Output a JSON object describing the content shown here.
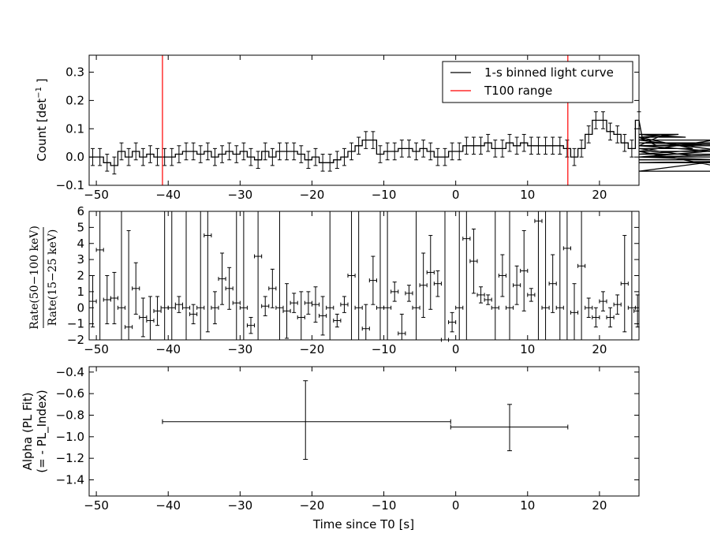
{
  "colors": {
    "axis": "#000000",
    "data": "#000000",
    "t100": "#ff0000",
    "background": "#ffffff"
  },
  "x_axis": {
    "label": "Time since T0 [s]",
    "xlim": [
      -51,
      25.5
    ],
    "ticks": [
      -50,
      -40,
      -30,
      -20,
      -10,
      0,
      10,
      20
    ],
    "tick_labels": [
      "−50",
      "−40",
      "−30",
      "−20",
      "−10",
      "0",
      "10",
      "20"
    ]
  },
  "chart_data": [
    {
      "type": "line",
      "panel": "light-curve",
      "ylabel_main": "Count [det",
      "ylabel_sup": "−1",
      "ylabel_tail": " ]",
      "ylim": [
        -0.1,
        0.36
      ],
      "yticks": [
        -0.1,
        0.0,
        0.1,
        0.2,
        0.3
      ],
      "ytick_labels": [
        "−0.1",
        "0.0",
        "0.1",
        "0.2",
        "0.3"
      ],
      "legend": {
        "placement": "top-right",
        "entries": [
          {
            "label": "1-s binned light curve",
            "color": "#000000"
          },
          {
            "label": "T100 range",
            "color": "#ff0000"
          }
        ]
      },
      "t100_range": [
        -40.8,
        15.6
      ],
      "bin_width": 1,
      "x_start": -51,
      "values": [
        0.0,
        0.0,
        -0.02,
        -0.03,
        0.02,
        0.0,
        0.02,
        0.0,
        0.01,
        0.0,
        0.0,
        0.0,
        0.01,
        0.02,
        0.02,
        0.01,
        0.02,
        0.0,
        0.01,
        0.02,
        0.01,
        0.02,
        0.0,
        -0.01,
        0.02,
        0.0,
        0.02,
        0.02,
        0.02,
        0.01,
        -0.01,
        0.0,
        -0.02,
        -0.02,
        -0.01,
        0.0,
        0.02,
        0.04,
        0.06,
        0.06,
        0.01,
        0.02,
        0.02,
        0.03,
        0.03,
        0.02,
        0.03,
        0.02,
        0.0,
        0.0,
        0.02,
        0.02,
        0.04,
        0.04,
        0.04,
        0.05,
        0.03,
        0.03,
        0.05,
        0.04,
        0.05,
        0.04,
        0.04,
        0.04,
        0.04,
        0.04,
        0.03,
        0.0,
        0.03,
        0.08,
        0.13,
        0.13,
        0.09,
        0.08,
        0.05,
        0.03,
        0.13,
        0.06,
        0.07,
        0.04,
        0.08,
        0.07,
        0.08,
        0.07,
        0.03,
        0.0,
        0.02,
        0.06,
        0.06,
        0.02,
        0.02,
        -0.05,
        0.0,
        0.01,
        0.04,
        0.04,
        0.05,
        0.04,
        0.0,
        -0.02,
        -0.01
      ],
      "error": 0.03
    },
    {
      "type": "scatter",
      "panel": "hardness-ratio",
      "ylabel_num": "Rate(50−100 keV)",
      "ylabel_den": "Rate(15−25 keV)",
      "ylim": [
        -2,
        6
      ],
      "yticks": [
        -2,
        -1,
        0,
        1,
        2,
        3,
        4,
        5,
        6
      ],
      "ytick_labels": [
        "−2",
        "−1",
        "0",
        "1",
        "2",
        "3",
        "4",
        "5",
        "6"
      ],
      "points": [
        {
          "x": -50.5,
          "y": 0.4,
          "e": 1.6
        },
        {
          "x": -49.5,
          "y": 3.6,
          "e": 6
        },
        {
          "x": -48.5,
          "y": 0.5,
          "e": 1.5
        },
        {
          "x": -47.5,
          "y": 0.6,
          "e": 1.6
        },
        {
          "x": -46.5,
          "y": 0,
          "e": 8
        },
        {
          "x": -45.5,
          "y": -1.2,
          "e": 6
        },
        {
          "x": -44.5,
          "y": 1.2,
          "e": 1.6
        },
        {
          "x": -43.5,
          "y": -0.6,
          "e": 1.2
        },
        {
          "x": -42.5,
          "y": -0.8,
          "e": 1.5
        },
        {
          "x": -41.5,
          "y": -0.2,
          "e": 0.9
        },
        {
          "x": -40.5,
          "y": 0,
          "e": 8
        },
        {
          "x": -39.5,
          "y": 0,
          "e": 8
        },
        {
          "x": -38.5,
          "y": 0.2,
          "e": 0.5
        },
        {
          "x": -37.5,
          "y": 0,
          "e": 8
        },
        {
          "x": -36.5,
          "y": -0.4,
          "e": 0.6
        },
        {
          "x": -35.5,
          "y": 0,
          "e": 8
        },
        {
          "x": -34.5,
          "y": 4.5,
          "e": 6
        },
        {
          "x": -33.5,
          "y": 0,
          "e": 1
        },
        {
          "x": -32.5,
          "y": 1.8,
          "e": 1.6
        },
        {
          "x": -31.5,
          "y": 1.2,
          "e": 1.3
        },
        {
          "x": -30.5,
          "y": 0.3,
          "e": 8
        },
        {
          "x": -29.5,
          "y": 0,
          "e": 8
        },
        {
          "x": -28.5,
          "y": -1.1,
          "e": 0.5
        },
        {
          "x": -27.5,
          "y": 3.2,
          "e": 6
        },
        {
          "x": -26.5,
          "y": 0.1,
          "e": 0.6
        },
        {
          "x": -25.5,
          "y": 1.2,
          "e": 1.2
        },
        {
          "x": -24.5,
          "y": 0,
          "e": 8
        },
        {
          "x": -23.5,
          "y": -0.2,
          "e": 1.7
        },
        {
          "x": -22.5,
          "y": 0.3,
          "e": 0.6
        },
        {
          "x": -21.5,
          "y": -0.6,
          "e": 1.6
        },
        {
          "x": -20.5,
          "y": 0.3,
          "e": 0.7
        },
        {
          "x": -19.5,
          "y": 0.2,
          "e": 1.1
        },
        {
          "x": -18.5,
          "y": -0.5,
          "e": 1.2
        },
        {
          "x": -17.5,
          "y": 0,
          "e": 8
        },
        {
          "x": -16.5,
          "y": -0.8,
          "e": 0.4
        },
        {
          "x": -15.5,
          "y": 0.2,
          "e": 0.5
        },
        {
          "x": -14.5,
          "y": 2.0,
          "e": 8
        },
        {
          "x": -13.5,
          "y": 0,
          "e": 8
        },
        {
          "x": -12.5,
          "y": -1.3,
          "e": 1.5
        },
        {
          "x": -11.5,
          "y": 1.7,
          "e": 1.5
        },
        {
          "x": -10.5,
          "y": 0,
          "e": 8
        },
        {
          "x": -9.5,
          "y": 0,
          "e": 8
        },
        {
          "x": -8.5,
          "y": 1.0,
          "e": 0.6
        },
        {
          "x": -7.5,
          "y": -1.6,
          "e": 1.2
        },
        {
          "x": -6.5,
          "y": 0.9,
          "e": 0.5
        },
        {
          "x": -5.5,
          "y": 0,
          "e": 8
        },
        {
          "x": -4.5,
          "y": 1.4,
          "e": 2.0
        },
        {
          "x": -3.5,
          "y": 2.2,
          "e": 2.3
        },
        {
          "x": -2.5,
          "y": 1.5,
          "e": 0.8
        },
        {
          "x": -1.5,
          "y": -2.0,
          "e": 8
        },
        {
          "x": -0.5,
          "y": -0.9,
          "e": 0.6
        },
        {
          "x": 0.5,
          "y": 0,
          "e": 8
        },
        {
          "x": 1.5,
          "y": 4.3,
          "e": 8
        },
        {
          "x": 2.5,
          "y": 2.9,
          "e": 2.0
        },
        {
          "x": 3.5,
          "y": 0.8,
          "e": 0.5
        },
        {
          "x": 4.5,
          "y": 0.5,
          "e": 0.3
        },
        {
          "x": 5.5,
          "y": 0,
          "e": 8
        },
        {
          "x": 6.5,
          "y": 2.0,
          "e": 1.3
        },
        {
          "x": 7.5,
          "y": 0,
          "e": 8
        },
        {
          "x": 8.5,
          "y": 1.4,
          "e": 1.2
        },
        {
          "x": 9.5,
          "y": 2.3,
          "e": 2.5
        },
        {
          "x": 10.5,
          "y": 0.8,
          "e": 0.4
        },
        {
          "x": 11.5,
          "y": 5.4,
          "e": 8
        },
        {
          "x": 12.5,
          "y": 0,
          "e": 8
        },
        {
          "x": 13.5,
          "y": 1.5,
          "e": 1.8
        },
        {
          "x": 14.5,
          "y": 0,
          "e": 8
        },
        {
          "x": 15.5,
          "y": 3.7,
          "e": 8
        },
        {
          "x": 16.5,
          "y": -0.3,
          "e": 1.8
        },
        {
          "x": 17.5,
          "y": 2.6,
          "e": 8
        },
        {
          "x": 18.5,
          "y": 0,
          "e": 0.6
        },
        {
          "x": 19.5,
          "y": -0.6,
          "e": 0.6
        },
        {
          "x": 20.5,
          "y": 0.4,
          "e": 0.6
        },
        {
          "x": 21.5,
          "y": -0.6,
          "e": 0.6
        },
        {
          "x": 22.5,
          "y": 0.2,
          "e": 0.6
        },
        {
          "x": 23.5,
          "y": 1.5,
          "e": 3.0
        },
        {
          "x": 24.5,
          "y": 0,
          "e": 8
        },
        {
          "x": 25.3,
          "y": -0.2,
          "e": 1.0
        }
      ]
    },
    {
      "type": "scatter",
      "panel": "alpha",
      "ylabel_line1": "Alpha (PL Fit)",
      "ylabel_line2": "(= - PL_Index)",
      "ylim": [
        -1.55,
        -0.35
      ],
      "yticks": [
        -1.4,
        -1.2,
        -1.0,
        -0.8,
        -0.6,
        -0.4
      ],
      "ytick_labels": [
        "−1.4",
        "−1.2",
        "−1.0",
        "−0.8",
        "−0.6",
        "−0.4"
      ],
      "points": [
        {
          "x": -20.9,
          "xlo": -40.8,
          "xhi": -0.7,
          "y": -0.86,
          "ylo": -1.21,
          "yhi": -0.48
        },
        {
          "x": 7.5,
          "xlo": -0.7,
          "xhi": 15.6,
          "y": -0.91,
          "ylo": -1.13,
          "yhi": -0.7
        }
      ]
    }
  ]
}
